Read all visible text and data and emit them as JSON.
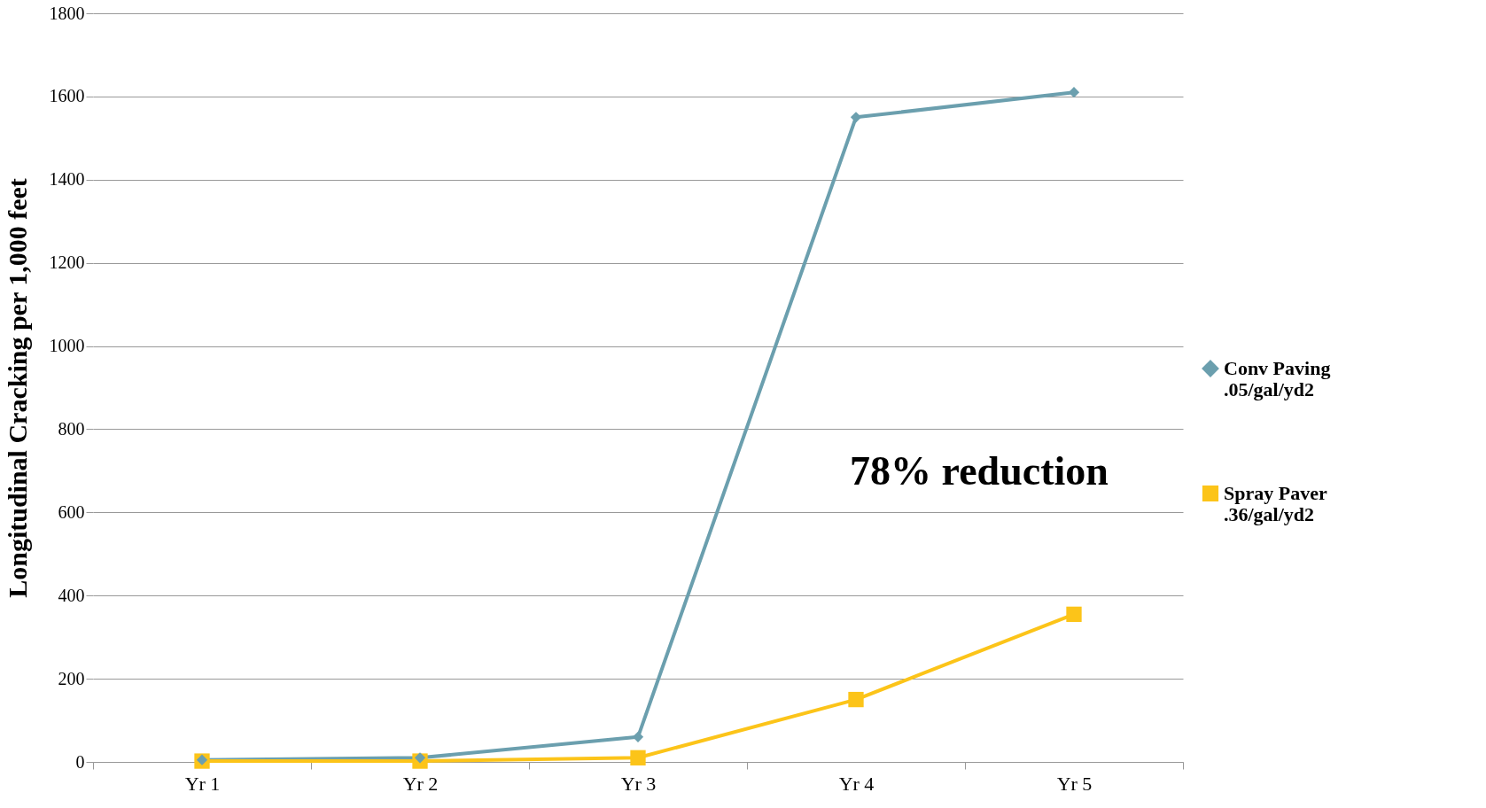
{
  "chart_data": {
    "type": "line",
    "ylabel": "Longitudinal Cracking per 1,000 feet",
    "categories": [
      "Yr 1",
      "Yr 2",
      "Yr 3",
      "Yr 4",
      "Yr 5"
    ],
    "series": [
      {
        "name": "Conv Paving .05/gal/yd2",
        "color": "#6b9fae",
        "marker": "diamond",
        "values": [
          5,
          10,
          60,
          1550,
          1610
        ]
      },
      {
        "name": "Spray Paver .36/gal/yd2",
        "color": "#fcc419",
        "marker": "square",
        "values": [
          2,
          2,
          10,
          150,
          355
        ]
      }
    ],
    "ylim": [
      0,
      1800
    ],
    "yticks": [
      0,
      200,
      400,
      600,
      800,
      1000,
      1200,
      1400,
      1600,
      1800
    ],
    "grid": "y",
    "legend": "right",
    "annotations": [
      "78% reduction"
    ]
  }
}
